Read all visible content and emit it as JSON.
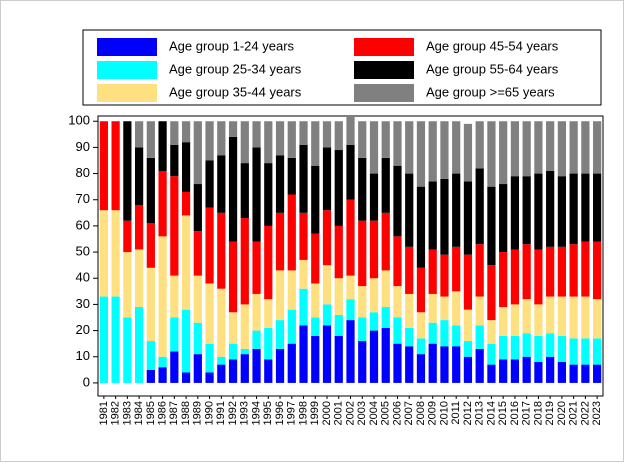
{
  "chart_data": {
    "type": "stacked_bar",
    "categories": [
      "1981",
      "1982",
      "1983",
      "1984",
      "1985",
      "1986",
      "1987",
      "1988",
      "1989",
      "1990",
      "1991",
      "1992",
      "1993",
      "1994",
      "1995",
      "1996",
      "1997",
      "1998",
      "1999",
      "2000",
      "2001",
      "2002",
      "2003",
      "2004",
      "2005",
      "2006",
      "2007",
      "2008",
      "2009",
      "2010",
      "2011",
      "2012",
      "2013",
      "2014",
      "2015",
      "2016",
      "2017",
      "2018",
      "2019",
      "2020",
      "2021",
      "2022",
      "2023"
    ],
    "series": [
      {
        "name": "Age group 1-24 years",
        "color": "#0000ff",
        "values": [
          0,
          0,
          0,
          0,
          5,
          6,
          12,
          4,
          11,
          4,
          7,
          9,
          11,
          13,
          9,
          13,
          15,
          22,
          18,
          22,
          18,
          24,
          16,
          20,
          21,
          15,
          14,
          11,
          15,
          14,
          14,
          10,
          13,
          7,
          9,
          9,
          10,
          8,
          10,
          8,
          7,
          7,
          7
        ]
      },
      {
        "name": "Age group 25-34 years",
        "color": "#00ffff",
        "values": [
          33,
          33,
          25,
          29,
          11,
          4,
          13,
          24,
          12,
          11,
          3,
          6,
          2,
          7,
          12,
          11,
          13,
          14,
          7,
          8,
          8,
          8,
          9,
          7,
          8,
          10,
          7,
          6,
          8,
          10,
          8,
          6,
          9,
          8,
          9,
          9,
          9,
          10,
          9,
          10,
          10,
          10,
          10
        ]
      },
      {
        "name": "Age group 35-44 years",
        "color": "#ffe080",
        "values": [
          33,
          33,
          25,
          22,
          28,
          46,
          16,
          36,
          18,
          23,
          26,
          12,
          17,
          14,
          11,
          19,
          15,
          11,
          13,
          15,
          14,
          9,
          12,
          13,
          14,
          12,
          13,
          10,
          11,
          9,
          13,
          12,
          11,
          9,
          11,
          12,
          13,
          12,
          14,
          15,
          16,
          16,
          15
        ]
      },
      {
        "name": "Age group 45-54 years",
        "color": "#ff0000",
        "values": [
          34,
          34,
          12,
          17,
          17,
          25,
          38,
          9,
          17,
          29,
          29,
          27,
          33,
          20,
          28,
          22,
          29,
          18,
          19,
          21,
          20,
          29,
          25,
          22,
          22,
          19,
          18,
          17,
          17,
          16,
          17,
          21,
          20,
          21,
          21,
          21,
          21,
          21,
          19,
          19,
          20,
          21,
          22
        ]
      },
      {
        "name": "Age group 55-64 years",
        "color": "#000000",
        "values": [
          0,
          0,
          38,
          22,
          25,
          19,
          12,
          19,
          18,
          18,
          22,
          40,
          21,
          36,
          24,
          22,
          14,
          26,
          26,
          24,
          29,
          21,
          24,
          18,
          21,
          27,
          28,
          31,
          26,
          29,
          28,
          28,
          29,
          30,
          26,
          28,
          26,
          29,
          29,
          27,
          27,
          26,
          26
        ]
      },
      {
        "name": "Age group >=65 years",
        "color": "#808080",
        "values": [
          0,
          0,
          0,
          10,
          14,
          0,
          9,
          8,
          24,
          15,
          13,
          6,
          16,
          10,
          16,
          13,
          14,
          9,
          17,
          10,
          11,
          11,
          14,
          20,
          14,
          17,
          20,
          25,
          23,
          22,
          20,
          22,
          18,
          25,
          24,
          21,
          21,
          20,
          19,
          21,
          20,
          20,
          20
        ]
      }
    ],
    "ylim": [
      -5,
      102
    ],
    "yticks": [
      0,
      10,
      20,
      30,
      40,
      50,
      60,
      70,
      80,
      90,
      100
    ],
    "grid": false
  }
}
